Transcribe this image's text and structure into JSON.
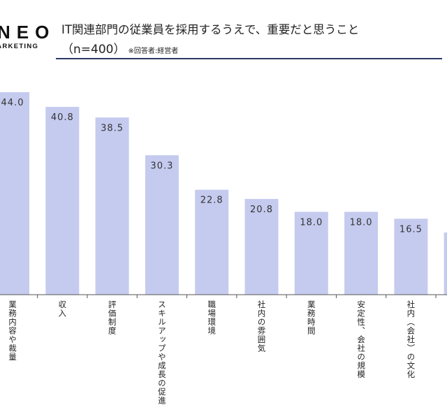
{
  "logo": {
    "main": "NEO",
    "sub": "MARKETING"
  },
  "chart_data": {
    "type": "bar",
    "title": "IT関連部門の従業員を採用するうえで、重要だと思うこと",
    "subtitle": "（n=400）",
    "note": "※回答者:経営者",
    "categories": [
      "業務内容や裁量",
      "収入",
      "評価制度",
      "スキルアップや成長の促進",
      "職場環境",
      "社内の雰囲気",
      "業務時間",
      "安定性、会社の規模",
      "社内（会社）の文化",
      ""
    ],
    "values": [
      44.0,
      40.8,
      38.5,
      30.3,
      22.8,
      20.8,
      18.0,
      18.0,
      16.5,
      13.5
    ],
    "value_labels": [
      "44.0",
      "40.8",
      "38.5",
      "30.3",
      "22.8",
      "20.8",
      "18.0",
      "18.0",
      "16.5",
      ""
    ],
    "ylim": [
      0,
      44
    ],
    "bar_color": "#c5cbef",
    "axis_color": "#555555",
    "rule_color": "#2d3a66",
    "grid": false
  }
}
